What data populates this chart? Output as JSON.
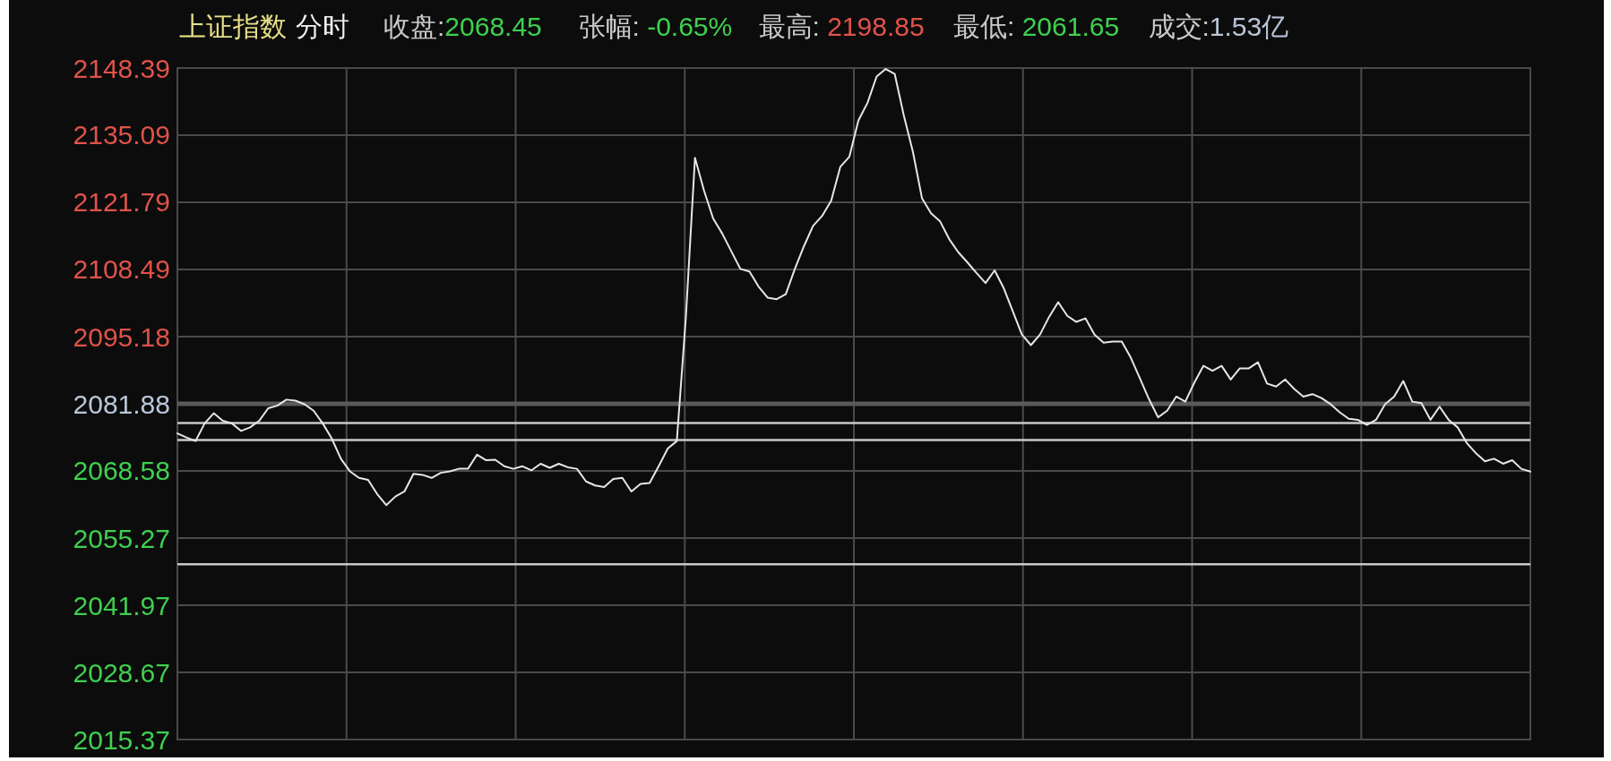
{
  "chart_data": {
    "type": "line",
    "title": "上证指数",
    "subtitle": "分时",
    "annotations": [
      "收盘:2068.45",
      "张幅: -0.65%",
      "最高: 2198.85",
      "最低: 2061.65",
      "成交:1.53亿"
    ],
    "categories": [
      null,
      null,
      null,
      null,
      null,
      null,
      null,
      null,
      null,
      null,
      null,
      null,
      null,
      null,
      null,
      null,
      null,
      null,
      null,
      null,
      null,
      null,
      null,
      null,
      null,
      null,
      null,
      null,
      null,
      null,
      null,
      null,
      null,
      null,
      null,
      null,
      null,
      null,
      null,
      null,
      null,
      null,
      null,
      null,
      null,
      null,
      null,
      null,
      null,
      null,
      null,
      null,
      null,
      null,
      null,
      null,
      null,
      null,
      null,
      null,
      null,
      null,
      null,
      null,
      null,
      null,
      null,
      null,
      null,
      null,
      null,
      null,
      null,
      null,
      null,
      null,
      null,
      null,
      null,
      null,
      null,
      null,
      null,
      null,
      null,
      null,
      null,
      null,
      null,
      null,
      null,
      null,
      null,
      null,
      null,
      null,
      null,
      null,
      null,
      null,
      null,
      null,
      null,
      null,
      null,
      null,
      null,
      null,
      null,
      null,
      null,
      null,
      null,
      null,
      null,
      null,
      null,
      null,
      null,
      null,
      null,
      null,
      null,
      null,
      null,
      null,
      null,
      null,
      null,
      null,
      null,
      null,
      null,
      null,
      null,
      null,
      null,
      null,
      null,
      null,
      null,
      null,
      null,
      null,
      null,
      null,
      null,
      null,
      null,
      null
    ],
    "ylim": [
      2015.37,
      2148.39
    ],
    "yticks": [
      2015.37,
      2028.67,
      2041.97,
      2055.27,
      2068.58,
      2081.88,
      2095.18,
      2108.49,
      2121.79,
      2135.09,
      2148.39
    ],
    "tick_labels": "y",
    "grid": true,
    "line_style": "solid",
    "ref_lines": [
      {
        "axis": "y",
        "value": 2081.88,
        "color": "#5a5a5a"
      },
      {
        "axis": "y",
        "value": 2078.05,
        "color": "#c8c8c8"
      },
      {
        "axis": "y",
        "value": 2074.7,
        "color": "#c8c8c8"
      },
      {
        "axis": "y",
        "value": 2050.1,
        "color": "#c8c8c8"
      }
    ],
    "series": [
      {
        "color": "#e6e6e6",
        "values": [
          2076.0,
          2075.2,
          2074.5,
          2078.0,
          2080.0,
          2078.5,
          2078.0,
          2076.5,
          2077.2,
          2078.5,
          2081.0,
          2081.5,
          2082.7,
          2082.5,
          2081.8,
          2080.5,
          2078.0,
          2075.0,
          2071.0,
          2068.5,
          2067.2,
          2066.8,
          2064.0,
          2061.8,
          2063.5,
          2064.5,
          2068.0,
          2067.8,
          2067.2,
          2068.2,
          2068.5,
          2069.0,
          2069.0,
          2071.8,
          2070.7,
          2070.8,
          2069.5,
          2069.0,
          2069.5,
          2068.7,
          2070.0,
          2069.2,
          2070.0,
          2069.3,
          2069.0,
          2066.5,
          2065.7,
          2065.4,
          2067.0,
          2067.2,
          2064.5,
          2066.0,
          2066.2,
          2069.5,
          2073.0,
          2074.5,
          2099.1,
          2130.6,
          2124.1,
          2118.6,
          2115.6,
          2112.1,
          2108.6,
          2108.1,
          2105.1,
          2102.9,
          2102.6,
          2103.6,
          2108.6,
          2113.1,
          2117.1,
          2119.1,
          2122.1,
          2128.8,
          2130.8,
          2138.0,
          2141.5,
          2146.7,
          2148.2,
          2147.2,
          2139.0,
          2131.8,
          2122.6,
          2119.6,
          2118.0,
          2114.5,
          2111.9,
          2109.9,
          2107.8,
          2105.8,
          2108.3,
          2104.8,
          2100.2,
          2095.6,
          2093.5,
          2095.6,
          2099.1,
          2102.0,
          2099.3,
          2098.1,
          2098.8,
          2095.6,
          2094.0,
          2094.2,
          2094.2,
          2091.0,
          2086.9,
          2082.8,
          2079.2,
          2080.5,
          2083.3,
          2082.3,
          2086.1,
          2089.4,
          2088.4,
          2089.4,
          2086.7,
          2088.9,
          2088.9,
          2090.1,
          2085.9,
          2085.3,
          2086.7,
          2084.8,
          2083.3,
          2083.8,
          2083.0,
          2081.8,
          2080.2,
          2078.9,
          2078.7,
          2077.7,
          2078.7,
          2081.8,
          2083.3,
          2086.4,
          2082.3,
          2082.0,
          2078.7,
          2081.3,
          2078.7,
          2077.2,
          2074.1,
          2072.1,
          2070.5,
          2071.0,
          2070.0,
          2070.7,
          2069.0,
          2068.45
        ]
      }
    ]
  }
}
